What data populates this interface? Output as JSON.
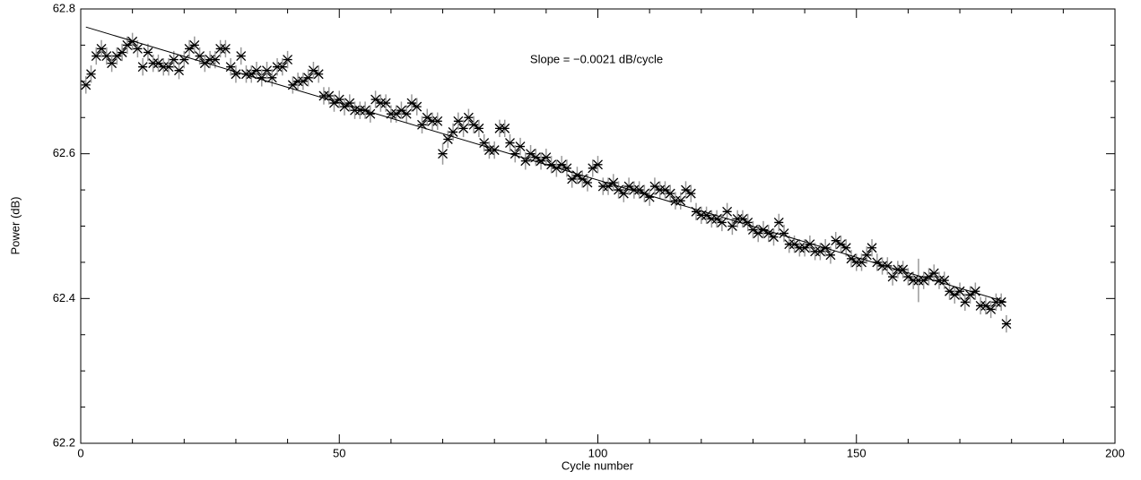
{
  "chart_data": {
    "type": "scatter",
    "xlabel": "Cycle number",
    "ylabel": "Power   (dB)",
    "annotation": "Slope = −0.0021 dB/cycle",
    "xlim": [
      0,
      200
    ],
    "ylim": [
      62.2,
      62.8
    ],
    "xticks": [
      0,
      50,
      100,
      150,
      200
    ],
    "yticks": [
      62.2,
      62.4,
      62.6,
      62.8
    ],
    "xminorticks": [
      10,
      20,
      30,
      40,
      60,
      70,
      80,
      90,
      110,
      120,
      130,
      140,
      160,
      170,
      180,
      190
    ],
    "yminorticks": [
      62.25,
      62.3,
      62.35,
      62.45,
      62.5,
      62.55,
      62.65,
      62.7,
      62.75
    ],
    "color": "#000000",
    "error_color": "#999999",
    "x": [
      1,
      2,
      3,
      4,
      5,
      6,
      7,
      8,
      9,
      10,
      11,
      12,
      13,
      14,
      15,
      16,
      17,
      18,
      19,
      20,
      21,
      22,
      23,
      24,
      25,
      26,
      27,
      28,
      29,
      30,
      31,
      32,
      33,
      34,
      35,
      36,
      37,
      38,
      39,
      40,
      41,
      42,
      43,
      44,
      45,
      46,
      47,
      48,
      49,
      50,
      51,
      52,
      53,
      54,
      55,
      56,
      57,
      58,
      59,
      60,
      61,
      62,
      63,
      64,
      65,
      66,
      67,
      68,
      69,
      70,
      71,
      72,
      73,
      74,
      75,
      76,
      77,
      78,
      79,
      80,
      81,
      82,
      83,
      84,
      85,
      86,
      87,
      88,
      89,
      90,
      91,
      92,
      93,
      94,
      95,
      96,
      97,
      98,
      99,
      100,
      101,
      102,
      103,
      104,
      105,
      106,
      107,
      108,
      109,
      110,
      111,
      112,
      113,
      114,
      115,
      116,
      117,
      118,
      119,
      120,
      121,
      122,
      123,
      124,
      125,
      126,
      127,
      128,
      129,
      130,
      131,
      132,
      133,
      134,
      135,
      136,
      137,
      138,
      139,
      140,
      141,
      142,
      143,
      144,
      145,
      146,
      147,
      148,
      149,
      150,
      151,
      152,
      153,
      154,
      155,
      156,
      157,
      158,
      159,
      160,
      161,
      162,
      163,
      164,
      165,
      166,
      167,
      168,
      169,
      170,
      171,
      172,
      173,
      174,
      175,
      176,
      177,
      178,
      179
    ],
    "values": [
      62.695,
      62.71,
      62.735,
      62.745,
      62.735,
      62.725,
      62.735,
      62.74,
      62.75,
      62.755,
      62.745,
      62.72,
      62.74,
      62.725,
      62.725,
      62.72,
      62.72,
      62.73,
      62.715,
      62.73,
      62.745,
      62.75,
      62.735,
      62.725,
      62.73,
      62.73,
      62.745,
      62.745,
      62.72,
      62.71,
      62.735,
      62.71,
      62.71,
      62.715,
      62.705,
      62.715,
      62.705,
      62.72,
      62.72,
      62.73,
      62.695,
      62.7,
      62.7,
      62.705,
      62.715,
      62.71,
      62.68,
      62.68,
      62.67,
      62.675,
      62.665,
      62.67,
      62.66,
      62.66,
      62.66,
      62.655,
      62.675,
      62.67,
      62.67,
      62.655,
      62.655,
      62.66,
      62.655,
      62.67,
      62.665,
      62.64,
      62.65,
      62.645,
      62.645,
      62.6,
      62.62,
      62.63,
      62.645,
      62.635,
      62.65,
      62.64,
      62.635,
      62.615,
      62.605,
      62.605,
      62.635,
      62.635,
      62.615,
      62.6,
      62.61,
      62.59,
      62.6,
      62.595,
      62.59,
      62.595,
      62.585,
      62.58,
      62.585,
      62.58,
      62.565,
      62.57,
      62.565,
      62.56,
      62.58,
      62.585,
      62.555,
      62.555,
      62.56,
      62.55,
      62.545,
      62.555,
      62.55,
      62.55,
      62.545,
      62.54,
      62.555,
      62.55,
      62.55,
      62.545,
      62.535,
      62.535,
      62.55,
      62.545,
      62.52,
      62.515,
      62.515,
      62.51,
      62.51,
      62.505,
      62.52,
      62.5,
      62.51,
      62.51,
      62.505,
      62.495,
      62.49,
      62.495,
      62.49,
      62.485,
      62.505,
      62.49,
      62.475,
      62.475,
      62.47,
      62.47,
      62.475,
      62.465,
      62.465,
      62.47,
      62.46,
      62.48,
      62.475,
      62.47,
      62.455,
      62.45,
      62.45,
      62.46,
      62.47,
      62.45,
      62.445,
      62.445,
      62.43,
      62.44,
      62.44,
      62.43,
      62.425,
      62.425,
      62.425,
      62.43,
      62.435,
      62.425,
      62.425,
      62.41,
      62.405,
      62.41,
      62.395,
      62.405,
      62.41,
      62.39,
      62.39,
      62.385,
      62.395,
      62.395,
      62.365
    ],
    "errors": [
      0.012,
      0.012,
      0.012,
      0.012,
      0.012,
      0.012,
      0.012,
      0.012,
      0.012,
      0.012,
      0.012,
      0.012,
      0.012,
      0.012,
      0.012,
      0.012,
      0.012,
      0.012,
      0.012,
      0.012,
      0.012,
      0.012,
      0.012,
      0.012,
      0.012,
      0.012,
      0.012,
      0.012,
      0.012,
      0.012,
      0.012,
      0.012,
      0.012,
      0.012,
      0.012,
      0.012,
      0.012,
      0.012,
      0.012,
      0.012,
      0.012,
      0.012,
      0.012,
      0.012,
      0.012,
      0.012,
      0.012,
      0.012,
      0.012,
      0.012,
      0.012,
      0.012,
      0.012,
      0.012,
      0.012,
      0.012,
      0.012,
      0.012,
      0.012,
      0.012,
      0.012,
      0.012,
      0.012,
      0.012,
      0.012,
      0.012,
      0.012,
      0.012,
      0.012,
      0.015,
      0.012,
      0.012,
      0.012,
      0.012,
      0.012,
      0.012,
      0.012,
      0.012,
      0.012,
      0.012,
      0.012,
      0.012,
      0.012,
      0.012,
      0.012,
      0.012,
      0.012,
      0.012,
      0.012,
      0.012,
      0.012,
      0.012,
      0.012,
      0.012,
      0.012,
      0.012,
      0.012,
      0.012,
      0.012,
      0.012,
      0.012,
      0.012,
      0.012,
      0.012,
      0.012,
      0.012,
      0.012,
      0.012,
      0.012,
      0.012,
      0.012,
      0.012,
      0.012,
      0.012,
      0.012,
      0.012,
      0.012,
      0.012,
      0.012,
      0.012,
      0.012,
      0.012,
      0.012,
      0.012,
      0.012,
      0.012,
      0.012,
      0.012,
      0.012,
      0.012,
      0.012,
      0.012,
      0.012,
      0.012,
      0.012,
      0.012,
      0.012,
      0.012,
      0.012,
      0.012,
      0.012,
      0.012,
      0.012,
      0.012,
      0.012,
      0.012,
      0.012,
      0.012,
      0.012,
      0.012,
      0.012,
      0.012,
      0.012,
      0.012,
      0.012,
      0.012,
      0.012,
      0.012,
      0.012,
      0.012,
      0.012,
      0.03,
      0.012,
      0.012,
      0.012,
      0.012,
      0.012,
      0.012,
      0.012,
      0.012,
      0.012,
      0.012,
      0.012,
      0.012,
      0.012,
      0.012,
      0.012,
      0.012,
      0.012
    ],
    "fit": {
      "x": [
        1,
        179
      ],
      "y": [
        62.775,
        62.395
      ]
    }
  }
}
